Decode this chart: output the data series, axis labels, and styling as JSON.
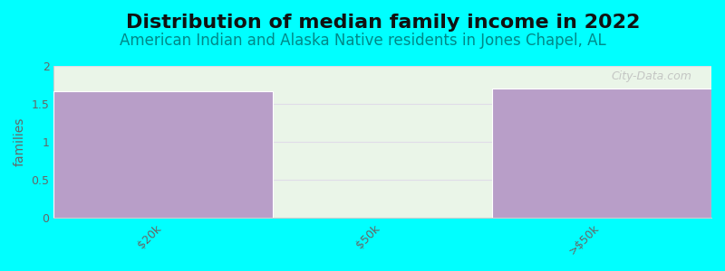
{
  "title": "Distribution of median family income in 2022",
  "subtitle": "American Indian and Alaska Native residents in Jones Chapel, AL",
  "categories": [
    "$20k",
    "$50k",
    ">$50k"
  ],
  "values": [
    1.67,
    0.0,
    1.7
  ],
  "bar_colors": [
    "#b89ec8",
    "#d8ecd0",
    "#b89ec8"
  ],
  "background_color": "#00ffff",
  "plot_bg_color": "#eaf5e8",
  "ylabel": "families",
  "ylim": [
    0,
    2
  ],
  "yticks": [
    0,
    0.5,
    1,
    1.5,
    2
  ],
  "title_fontsize": 16,
  "subtitle_fontsize": 12,
  "subtitle_color": "#008888",
  "title_color": "#111111",
  "watermark": "City-Data.com",
  "grid_color": "#e0dce8",
  "bar_edge_color": "#ffffff",
  "tick_color": "#666666"
}
